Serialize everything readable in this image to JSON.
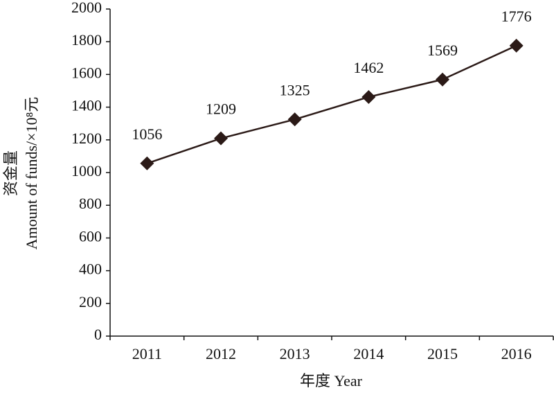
{
  "chart_data": {
    "type": "line",
    "y_label_lines": [
      "资金量",
      "Amount of funds/×10⁸元"
    ],
    "x_label": "年度 Year",
    "categories": [
      "2011",
      "2012",
      "2013",
      "2014",
      "2015",
      "2016"
    ],
    "series": [
      {
        "name": "Amount of funds",
        "color": "#2b1a17",
        "values": [
          1056,
          1209,
          1325,
          1462,
          1569,
          1776
        ]
      }
    ],
    "ylim": [
      0,
      2000
    ],
    "yticks": [
      0,
      200,
      400,
      600,
      800,
      1000,
      1200,
      1400,
      1600,
      1800,
      2000
    ],
    "grid": false,
    "marker": "diamond"
  }
}
